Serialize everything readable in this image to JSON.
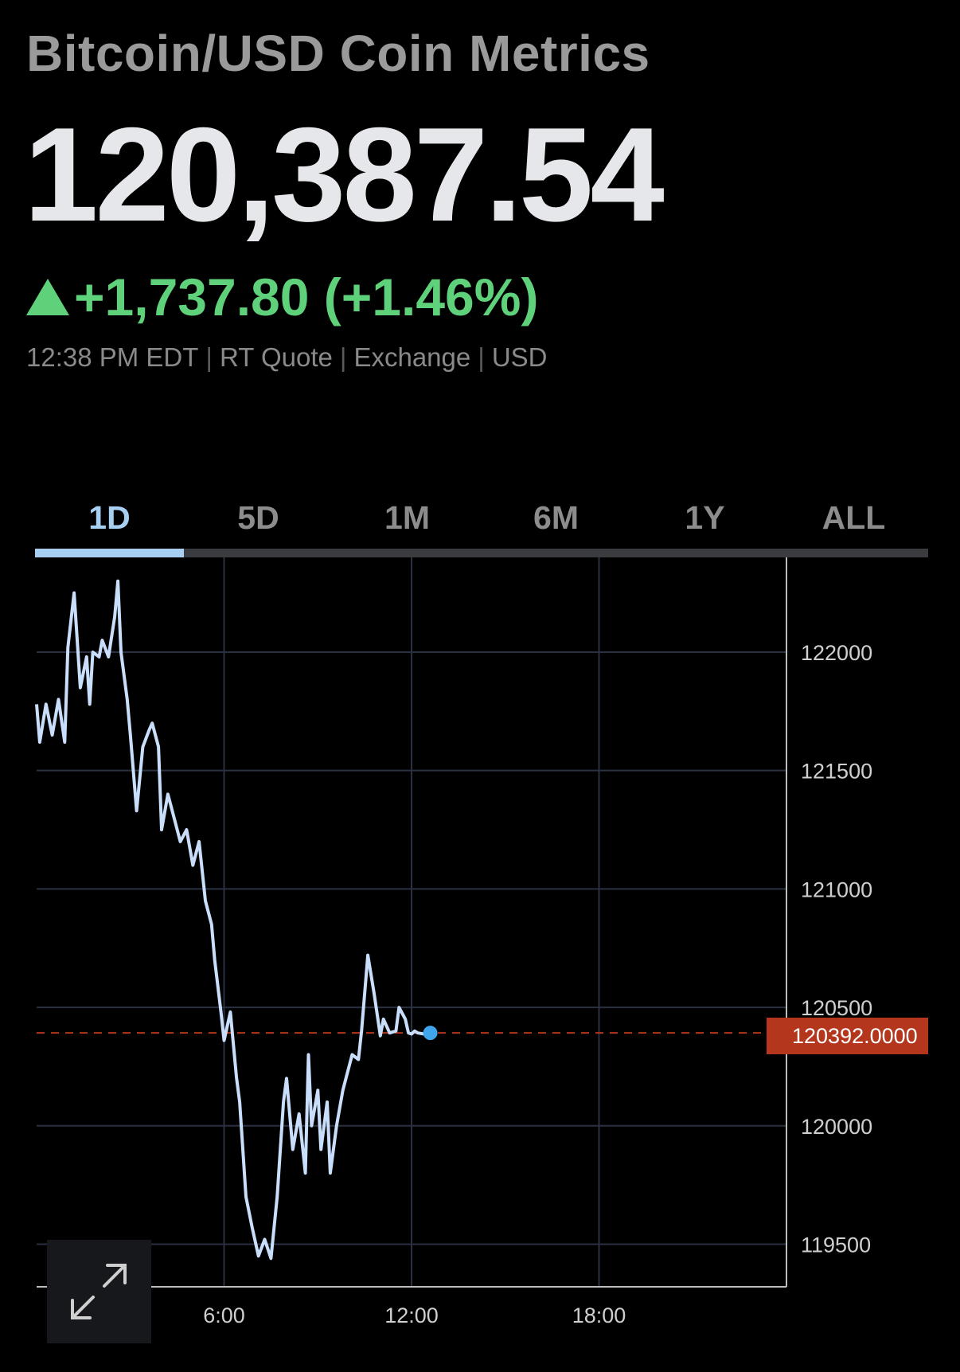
{
  "header": {
    "title": "Bitcoin/USD Coin Metrics",
    "price": "120,387.54",
    "change": "+1,737.80 (+1.46%)",
    "change_direction_icon": "triangle-up-icon",
    "meta": {
      "time": "12:38 PM EDT",
      "quote_type": "RT Quote",
      "exchange": "Exchange",
      "currency": "USD"
    }
  },
  "tabs": {
    "items": [
      "1D",
      "5D",
      "1M",
      "6M",
      "1Y",
      "ALL"
    ],
    "active": "1D"
  },
  "colors": {
    "background": "#000000",
    "line": "#c9defa",
    "positive": "#5fd17b",
    "accent": "#a7cff2",
    "reference_line": "#b3361d",
    "last_point": "#3fa6ec"
  },
  "expand_button": {
    "icon": "expand-arrows-icon"
  },
  "chart_data": {
    "type": "line",
    "x_tick_labels": [
      "6:00",
      "12:00",
      "18:00"
    ],
    "y_tick_labels": [
      "122000",
      "121500",
      "121000",
      "120500",
      "120000",
      "119500"
    ],
    "ylim": [
      119320,
      122400
    ],
    "xlim_hours": [
      0,
      24
    ],
    "reference_value": 120392,
    "reference_label": "120392.0000",
    "series": [
      {
        "x": [
          0.0,
          0.1,
          0.3,
          0.5,
          0.7,
          0.9,
          1.0,
          1.2,
          1.4,
          1.6,
          1.7,
          1.8,
          2.0,
          2.1,
          2.3,
          2.5,
          2.6,
          2.7,
          2.9,
          3.0,
          3.2,
          3.4,
          3.6,
          3.7,
          3.9,
          4.0,
          4.2,
          4.4,
          4.6,
          4.8,
          5.0,
          5.2,
          5.4,
          5.6,
          5.7,
          5.9,
          6.0,
          6.2,
          6.4,
          6.5,
          6.7,
          6.9,
          7.1,
          7.3,
          7.5,
          7.7,
          7.9,
          8.0,
          8.2,
          8.4,
          8.6,
          8.7,
          8.8,
          9.0,
          9.1,
          9.3,
          9.4,
          9.6,
          9.8,
          9.9,
          10.1,
          10.3,
          10.4,
          10.6,
          10.8,
          11.0,
          11.1,
          11.3,
          11.5,
          11.6,
          11.8,
          11.9,
          12.0,
          12.1,
          12.2,
          12.4,
          12.6
        ],
        "y": [
          121780,
          121620,
          121780,
          121650,
          121800,
          121620,
          122020,
          122250,
          121850,
          121980,
          121780,
          122000,
          121980,
          122050,
          121980,
          122150,
          122300,
          122000,
          121800,
          121650,
          121330,
          121600,
          121670,
          121700,
          121600,
          121250,
          121400,
          121300,
          121200,
          121250,
          121100,
          121200,
          120950,
          120850,
          120700,
          120480,
          120360,
          120480,
          120200,
          120100,
          119700,
          119570,
          119450,
          119520,
          119440,
          119700,
          120100,
          120200,
          119900,
          120050,
          119800,
          120300,
          120000,
          120150,
          119900,
          120100,
          119800,
          120000,
          120150,
          120200,
          120300,
          120280,
          120400,
          120720,
          120560,
          120380,
          120450,
          120392,
          120400,
          120500,
          120450,
          120392,
          120387.54,
          120400,
          120392,
          120387.54,
          120392
        ]
      }
    ],
    "grid": true,
    "y_axis_position": "right"
  }
}
